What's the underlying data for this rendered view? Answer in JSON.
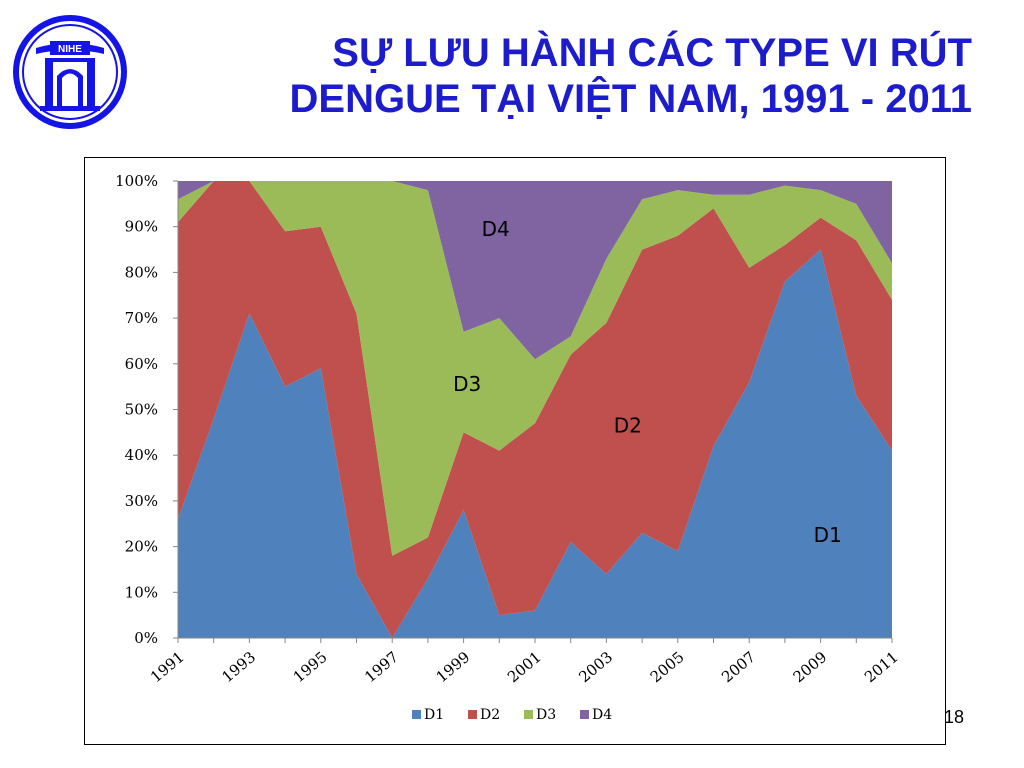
{
  "slide": {
    "title_line1": "SỰ LƯU HÀNH CÁC TYPE VI RÚT",
    "title_line2": "DENGUE TẠI VIỆT NAM, 1991 - 2011",
    "page_number": "18",
    "logo_text": "NIHE",
    "logo_icon": "temple-gate-icon",
    "colors": {
      "title": "#1c1ccc",
      "logo": "#1414e6"
    }
  },
  "chart_data": {
    "type": "area",
    "stacked": true,
    "normalized": true,
    "x": [
      1991,
      1992,
      1993,
      1994,
      1995,
      1996,
      1997,
      1998,
      1999,
      2000,
      2001,
      2002,
      2003,
      2004,
      2005,
      2006,
      2007,
      2008,
      2009,
      2010,
      2011
    ],
    "x_tick_labels": [
      "1991",
      "1993",
      "1995",
      "1997",
      "1999",
      "2001",
      "2003",
      "2005",
      "2007",
      "2009",
      "2011"
    ],
    "y_tick_labels": [
      "0%",
      "10%",
      "20%",
      "30%",
      "40%",
      "50%",
      "60%",
      "70%",
      "80%",
      "90%",
      "100%"
    ],
    "ylim": [
      0,
      100
    ],
    "series": [
      {
        "name": "D1",
        "color": "#4f81bd",
        "values": [
          26,
          48,
          71,
          55,
          59,
          14,
          0,
          13,
          28,
          5,
          6,
          21,
          14,
          23,
          19,
          42,
          56,
          78,
          85,
          53,
          41
        ]
      },
      {
        "name": "D2",
        "color": "#c0504d",
        "values": [
          65,
          52,
          29,
          34,
          31,
          57,
          18,
          9,
          17,
          36,
          41,
          41,
          55,
          62,
          69,
          52,
          25,
          8,
          7,
          34,
          33
        ]
      },
      {
        "name": "D3",
        "color": "#9bbb59",
        "values": [
          5,
          0,
          0,
          11,
          10,
          29,
          82,
          76,
          22,
          29,
          14,
          4,
          14,
          11,
          10,
          3,
          16,
          13,
          6,
          8,
          8
        ]
      },
      {
        "name": "D4",
        "color": "#8064a2",
        "values": [
          4,
          0,
          0,
          0,
          0,
          0,
          0,
          2,
          33,
          30,
          39,
          34,
          17,
          4,
          2,
          3,
          3,
          1,
          2,
          5,
          18
        ]
      }
    ],
    "area_labels": [
      {
        "text": "D4",
        "x": 1999.9,
        "y": 88
      },
      {
        "text": "D3",
        "x": 1999.1,
        "y": 54
      },
      {
        "text": "D2",
        "x": 2003.6,
        "y": 45
      },
      {
        "text": "D1",
        "x": 2009.2,
        "y": 21
      }
    ],
    "legend": [
      "D1",
      "D2",
      "D3",
      "D4"
    ],
    "legend_position": "bottom",
    "grid": false,
    "title": "",
    "xlabel": "",
    "ylabel": ""
  }
}
